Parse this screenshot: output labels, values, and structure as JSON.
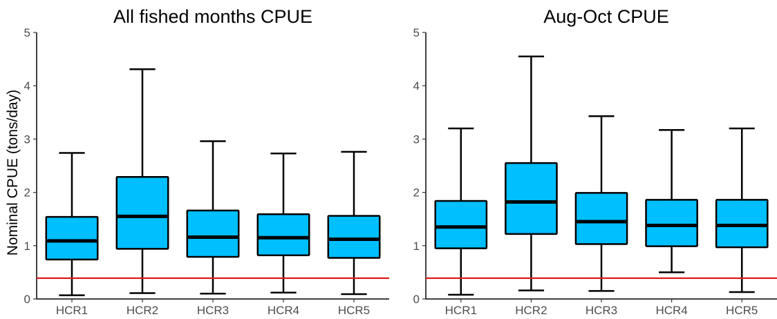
{
  "colors": {
    "box_fill": "#00bfff",
    "box_stroke": "#000000",
    "reference_line": "#e31a1c",
    "tick_text": "#4d4d4d"
  },
  "ylabel": "Nominal CPUE (tons/day)",
  "chart_data": [
    {
      "type": "boxplot",
      "title": "All fished months CPUE",
      "xlabel": "",
      "ylabel": "Nominal CPUE (tons/day)",
      "ylim": [
        0,
        5
      ],
      "yticks": [
        0,
        1,
        2,
        3,
        4,
        5
      ],
      "categories": [
        "HCR1",
        "HCR2",
        "HCR3",
        "HCR4",
        "HCR5"
      ],
      "boxes": [
        {
          "min": 0.07,
          "q1": 0.74,
          "median": 1.09,
          "q3": 1.54,
          "max": 2.74
        },
        {
          "min": 0.11,
          "q1": 0.94,
          "median": 1.55,
          "q3": 2.29,
          "max": 4.31
        },
        {
          "min": 0.1,
          "q1": 0.79,
          "median": 1.16,
          "q3": 1.66,
          "max": 2.96
        },
        {
          "min": 0.12,
          "q1": 0.82,
          "median": 1.15,
          "q3": 1.59,
          "max": 2.73
        },
        {
          "min": 0.09,
          "q1": 0.77,
          "median": 1.12,
          "q3": 1.56,
          "max": 2.76
        }
      ],
      "reference_line": 0.39,
      "grid": false
    },
    {
      "type": "boxplot",
      "title": "Aug-Oct CPUE",
      "xlabel": "",
      "ylabel": "",
      "ylim": [
        0,
        5
      ],
      "yticks": [
        0,
        1,
        2,
        3,
        4,
        5
      ],
      "categories": [
        "HCR1",
        "HCR2",
        "HCR3",
        "HCR4",
        "HCR5"
      ],
      "boxes": [
        {
          "min": 0.08,
          "q1": 0.95,
          "median": 1.35,
          "q3": 1.84,
          "max": 3.2
        },
        {
          "min": 0.16,
          "q1": 1.22,
          "median": 1.82,
          "q3": 2.55,
          "max": 4.55
        },
        {
          "min": 0.15,
          "q1": 1.03,
          "median": 1.45,
          "q3": 1.99,
          "max": 3.43
        },
        {
          "min": 0.5,
          "q1": 0.99,
          "median": 1.38,
          "q3": 1.86,
          "max": 3.17
        },
        {
          "min": 0.13,
          "q1": 0.97,
          "median": 1.38,
          "q3": 1.86,
          "max": 3.2
        }
      ],
      "reference_line": 0.39,
      "grid": false
    }
  ]
}
